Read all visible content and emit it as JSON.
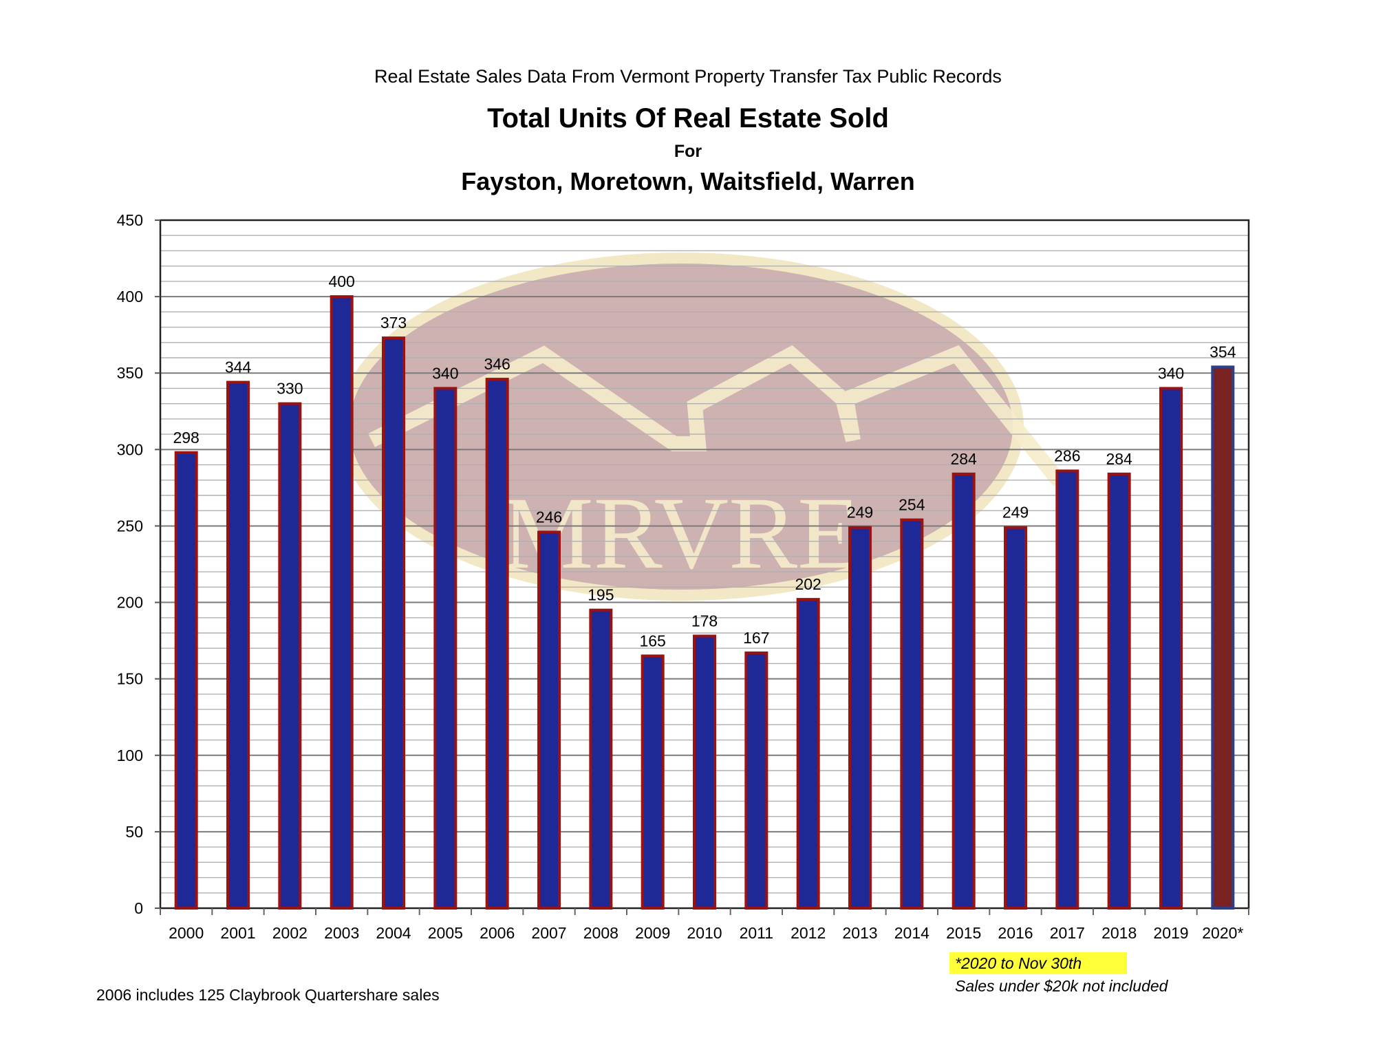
{
  "header": {
    "subtitle": "Real Estate Sales Data From Vermont Property Transfer Tax Public Records",
    "title": "Total Units Of Real Estate Sold",
    "for_line": "For",
    "towns": "Fayston, Moretown, Waitsfield, Warren"
  },
  "watermark": {
    "text": "MRVRE"
  },
  "notes": {
    "claybrook": "2006 includes 125 Claybrook Quartershare sales",
    "partial_year": "*2020 to Nov 30th",
    "threshold": "Sales under $20k not included"
  },
  "colors": {
    "bar_fill": "#1e2897",
    "bar_border": "#9a1212",
    "highlight_bar_fill": "#7a2222",
    "highlight_bar_border": "#2d3f8a",
    "note_highlight": "#ffff3a"
  },
  "chart_data": {
    "type": "bar",
    "categories": [
      "2000",
      "2001",
      "2002",
      "2003",
      "2004",
      "2005",
      "2006",
      "2007",
      "2008",
      "2009",
      "2010",
      "2011",
      "2012",
      "2013",
      "2014",
      "2015",
      "2016",
      "2017",
      "2018",
      "2019",
      "2020*"
    ],
    "values": [
      298,
      344,
      330,
      400,
      373,
      340,
      346,
      246,
      195,
      165,
      178,
      167,
      202,
      249,
      254,
      284,
      249,
      286,
      284,
      340,
      354
    ],
    "highlight_index": 20,
    "ylim": [
      0,
      450
    ],
    "y_major_step": 50,
    "y_minor_step": 10,
    "yticks": [
      "0",
      "50",
      "100",
      "150",
      "200",
      "250",
      "300",
      "350",
      "400",
      "450"
    ],
    "xlabel": "",
    "ylabel": "",
    "grid": true,
    "data_labels": true
  }
}
